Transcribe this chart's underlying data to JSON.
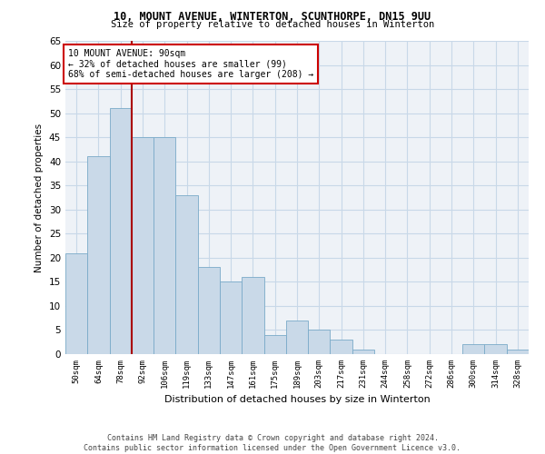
{
  "title1": "10, MOUNT AVENUE, WINTERTON, SCUNTHORPE, DN15 9UU",
  "title2": "Size of property relative to detached houses in Winterton",
  "xlabel": "Distribution of detached houses by size in Winterton",
  "ylabel": "Number of detached properties",
  "categories": [
    "50sqm",
    "64sqm",
    "78sqm",
    "92sqm",
    "106sqm",
    "119sqm",
    "133sqm",
    "147sqm",
    "161sqm",
    "175sqm",
    "189sqm",
    "203sqm",
    "217sqm",
    "231sqm",
    "244sqm",
    "258sqm",
    "272sqm",
    "286sqm",
    "300sqm",
    "314sqm",
    "328sqm"
  ],
  "values": [
    21,
    41,
    51,
    45,
    45,
    33,
    18,
    15,
    16,
    4,
    7,
    5,
    3,
    1,
    0,
    0,
    0,
    0,
    2,
    2,
    1
  ],
  "bar_color": "#c9d9e8",
  "bar_edge_color": "#7aaac8",
  "bar_width": 1.0,
  "vline_x": 2.5,
  "vline_color": "#aa0000",
  "annotation_title": "10 MOUNT AVENUE: 90sqm",
  "annotation_line1": "← 32% of detached houses are smaller (99)",
  "annotation_line2": "68% of semi-detached houses are larger (208) →",
  "annotation_box_color": "#cc0000",
  "ylim": [
    0,
    65
  ],
  "yticks": [
    0,
    5,
    10,
    15,
    20,
    25,
    30,
    35,
    40,
    45,
    50,
    55,
    60,
    65
  ],
  "footer1": "Contains HM Land Registry data © Crown copyright and database right 2024.",
  "footer2": "Contains public sector information licensed under the Open Government Licence v3.0.",
  "bg_color": "#eef2f7",
  "grid_color": "#c8d8e8"
}
